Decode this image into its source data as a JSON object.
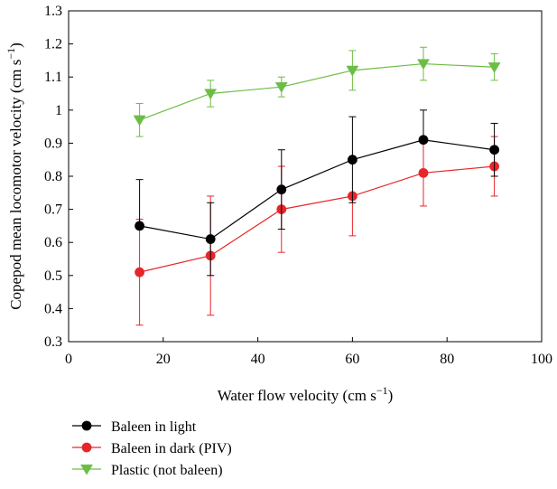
{
  "chart_data": {
    "type": "line",
    "xlabel": "Water flow velocity (cm s",
    "xlabel_sup": "−1",
    "xlabel_end": ")",
    "ylabel": "Copepod mean locomotor velocity (cm s",
    "ylabel_sup": "−1",
    "ylabel_end": ")",
    "xlim": [
      0,
      100
    ],
    "ylim": [
      0.3,
      1.3
    ],
    "x_ticks": [
      "0",
      "20",
      "40",
      "60",
      "80",
      "100"
    ],
    "y_ticks": [
      "0.3",
      "0.4",
      "0.5",
      "0.6",
      "0.7",
      "0.8",
      "0.9",
      "1",
      "1.1",
      "1.2",
      "1.3"
    ],
    "grid": false,
    "legend_position": "bottom-left, below plot",
    "series": [
      {
        "name": "Baleen in light",
        "color": "#000000",
        "marker": "circle",
        "x": [
          15,
          30,
          45,
          60,
          75,
          90
        ],
        "y": [
          0.65,
          0.61,
          0.76,
          0.85,
          0.91,
          0.88
        ],
        "err_up": [
          0.79,
          0.72,
          0.88,
          0.98,
          1.0,
          0.96
        ],
        "err_down": [
          0.65,
          0.5,
          0.64,
          0.72,
          0.91,
          0.8
        ]
      },
      {
        "name": "Baleen in dark (PIV)",
        "color": "#e8262a",
        "marker": "circle",
        "x": [
          15,
          30,
          45,
          60,
          75,
          90
        ],
        "y": [
          0.51,
          0.56,
          0.7,
          0.74,
          0.81,
          0.83
        ],
        "err_up": [
          0.67,
          0.74,
          0.83,
          0.74,
          0.91,
          0.92
        ],
        "err_down": [
          0.35,
          0.38,
          0.57,
          0.62,
          0.71,
          0.74
        ]
      },
      {
        "name": "Plastic (not baleen)",
        "color": "#6cbd45",
        "marker": "triangle-down",
        "x": [
          15,
          30,
          45,
          60,
          75,
          90
        ],
        "y": [
          0.97,
          1.05,
          1.07,
          1.12,
          1.14,
          1.13
        ],
        "err_up": [
          1.02,
          1.09,
          1.1,
          1.18,
          1.19,
          1.17
        ],
        "err_down": [
          0.92,
          1.01,
          1.04,
          1.06,
          1.09,
          1.09
        ]
      }
    ]
  }
}
